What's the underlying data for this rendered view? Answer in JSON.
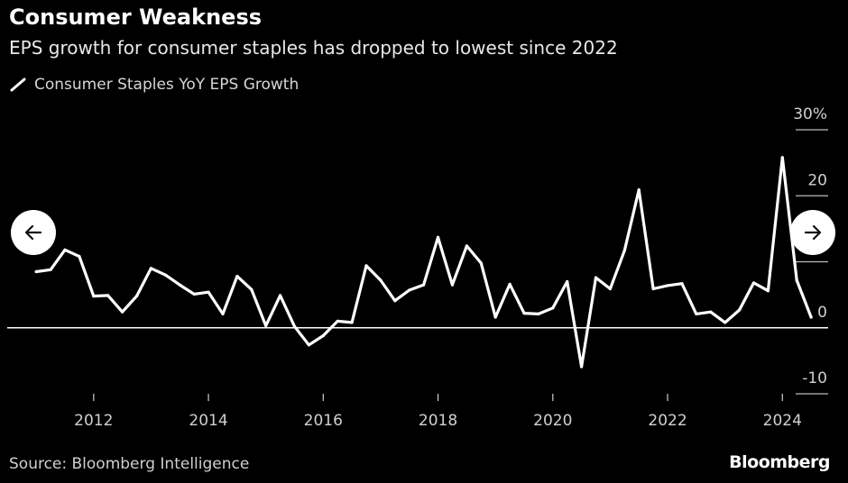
{
  "header": {
    "title": "Consumer Weakness",
    "subtitle": "EPS growth for consumer staples has dropped to lowest since 2022"
  },
  "legend": {
    "label": "Consumer Staples YoY EPS Growth"
  },
  "footer": {
    "source": "Source: Bloomberg Intelligence",
    "brand": "Bloomberg"
  },
  "colors": {
    "background": "#000000",
    "line": "#ffffff",
    "text": "#ffffff"
  },
  "chart_data": {
    "type": "line",
    "title": "Consumer Weakness",
    "subtitle": "EPS growth for consumer staples has dropped to lowest since 2022",
    "xlabel": "",
    "ylabel": "",
    "ylim": [
      -10,
      30
    ],
    "xlim": [
      2010.95,
      2024.75
    ],
    "yticks": [
      {
        "value": 30,
        "label": "30%"
      },
      {
        "value": 20,
        "label": "20"
      },
      {
        "value": 10,
        "label": ""
      },
      {
        "value": 0,
        "label": "0"
      },
      {
        "value": -10,
        "label": "-10"
      }
    ],
    "xticks": [
      {
        "value": 2012,
        "label": "2012"
      },
      {
        "value": 2014,
        "label": "2014"
      },
      {
        "value": 2016,
        "label": "2016"
      },
      {
        "value": 2018,
        "label": "2018"
      },
      {
        "value": 2020,
        "label": "2020"
      },
      {
        "value": 2022,
        "label": "2022"
      },
      {
        "value": 2024,
        "label": "2024"
      }
    ],
    "legend_position": "top-left",
    "series": [
      {
        "name": "Consumer Staples YoY EPS Growth",
        "x": [
          2011.0,
          2011.25,
          2011.5,
          2011.75,
          2012.0,
          2012.25,
          2012.5,
          2012.75,
          2013.0,
          2013.25,
          2013.5,
          2013.75,
          2014.0,
          2014.25,
          2014.5,
          2014.75,
          2015.0,
          2015.25,
          2015.5,
          2015.75,
          2016.0,
          2016.25,
          2016.5,
          2016.75,
          2017.0,
          2017.25,
          2017.5,
          2017.75,
          2018.0,
          2018.25,
          2018.5,
          2018.75,
          2019.0,
          2019.25,
          2019.5,
          2019.75,
          2020.0,
          2020.25,
          2020.5,
          2020.75,
          2021.0,
          2021.25,
          2021.5,
          2021.75,
          2022.0,
          2022.25,
          2022.5,
          2022.75,
          2023.0,
          2023.25,
          2023.5,
          2023.75,
          2024.0,
          2024.25,
          2024.5
        ],
        "values": [
          8.5,
          8.8,
          11.8,
          10.8,
          4.8,
          4.9,
          2.4,
          4.8,
          9.0,
          8.0,
          6.5,
          5.1,
          5.4,
          2.1,
          7.8,
          5.8,
          0.3,
          4.9,
          0.2,
          -2.6,
          -1.2,
          1.0,
          0.8,
          9.4,
          7.2,
          4.1,
          5.7,
          6.5,
          13.7,
          6.5,
          12.4,
          9.8,
          1.6,
          6.6,
          2.2,
          2.1,
          3.0,
          7.0,
          -5.9,
          7.6,
          5.9,
          11.7,
          20.9,
          5.9,
          6.4,
          6.7,
          2.1,
          2.4,
          0.8,
          2.7,
          6.8,
          5.6,
          25.8,
          7.2,
          1.6
        ]
      }
    ]
  },
  "nav": {
    "prev_icon": "arrow-left-icon",
    "next_icon": "arrow-right-icon"
  }
}
